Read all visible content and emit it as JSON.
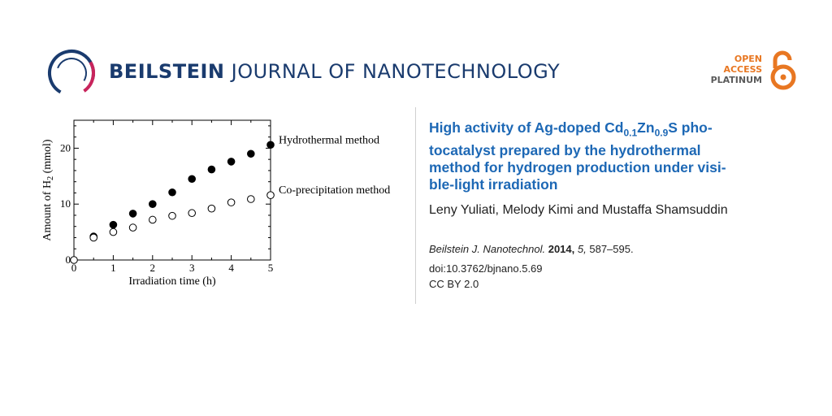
{
  "header": {
    "journal_bold": "BEILSTEIN",
    "journal_rest": "JOURNAL OF NANOTECHNOLOGY",
    "logo_icon": "beilstein-logo-icon",
    "open_access": {
      "line1": "OPEN",
      "line2": "ACCESS",
      "line3": "PLATINUM",
      "icon": "open-lock-icon"
    },
    "colors": {
      "brand": "#1a3b6e",
      "accent": "#e87722",
      "title": "#1d68b5"
    }
  },
  "article": {
    "title_part1": "High activity of Ag-doped Cd",
    "title_sub1": "0.1",
    "title_part2": "Zn",
    "title_sub2": "0.9",
    "title_part3": "S pho-",
    "title_line2": "tocatalyst prepared by the hydrothermal",
    "title_line3": "method for hydrogen production under visi-",
    "title_line4": "ble-light irradiation",
    "authors": "Leny Yuliati, Melody Kimi and Mustaffa Shamsuddin",
    "journal_abbrev": "Beilstein J. Nanotechnol.",
    "year": "2014,",
    "volume": "5,",
    "pages": "587–595.",
    "doi": "doi:10.3762/bjnano.5.69",
    "license": "CC BY 2.0"
  },
  "chart_data": {
    "type": "scatter",
    "xlabel": "Irradiation time (h)",
    "ylabel_main": "Amount of H",
    "ylabel_sub": "2",
    "ylabel_unit": " (mmol)",
    "xlim": [
      0,
      5
    ],
    "ylim": [
      0,
      25
    ],
    "xticks": [
      "0",
      "1",
      "2",
      "3",
      "4",
      "5"
    ],
    "yticks": [
      "0",
      "10",
      "20"
    ],
    "grid": false,
    "series": [
      {
        "name": "Hydrothermal method",
        "marker": "filled",
        "x": [
          0.5,
          1.0,
          1.5,
          2.0,
          2.5,
          3.0,
          3.5,
          4.0,
          4.5,
          5.0
        ],
        "y": [
          4.2,
          6.3,
          8.3,
          10.0,
          12.1,
          14.5,
          16.2,
          17.6,
          19.0,
          20.6
        ]
      },
      {
        "name": "Co-precipitation method",
        "marker": "open",
        "x": [
          0.0,
          0.5,
          1.0,
          1.5,
          2.0,
          2.5,
          3.0,
          3.5,
          4.0,
          4.5,
          5.0
        ],
        "y": [
          0.0,
          4.0,
          5.0,
          5.8,
          7.2,
          7.9,
          8.4,
          9.2,
          10.3,
          10.9,
          11.6
        ]
      }
    ]
  }
}
